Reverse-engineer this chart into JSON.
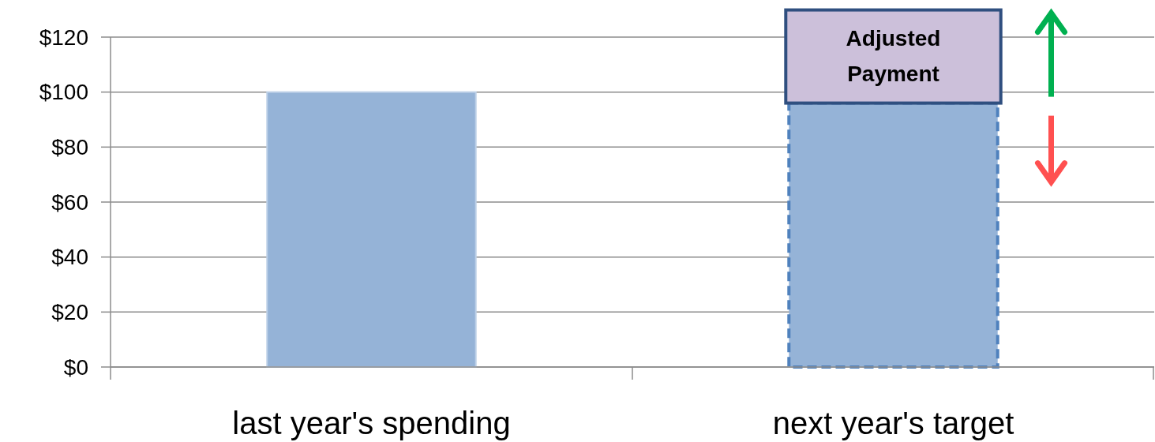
{
  "chart_data": {
    "type": "bar",
    "categories": [
      "last year's spending",
      "next year's target"
    ],
    "series": [
      {
        "color": "#95b3d7",
        "values": [
          100,
          null
        ]
      },
      {
        "color": "#95b3d7",
        "values": [
          null,
          96
        ],
        "line_style": "dashed"
      }
    ],
    "stacked": true,
    "ylim": [
      0,
      120
    ],
    "yticks": [
      {
        "value": 0,
        "label": "$0"
      },
      {
        "value": 20,
        "label": "$20"
      },
      {
        "value": 40,
        "label": "$40"
      },
      {
        "value": 60,
        "label": "$60"
      },
      {
        "value": 80,
        "label": "$80"
      },
      {
        "value": 100,
        "label": "$100"
      },
      {
        "value": 120,
        "label": "$120"
      }
    ],
    "grid": "y",
    "annotations": [
      {
        "text": "Adjusted Payment",
        "x": "next year's target",
        "y": 96
      }
    ]
  }
}
